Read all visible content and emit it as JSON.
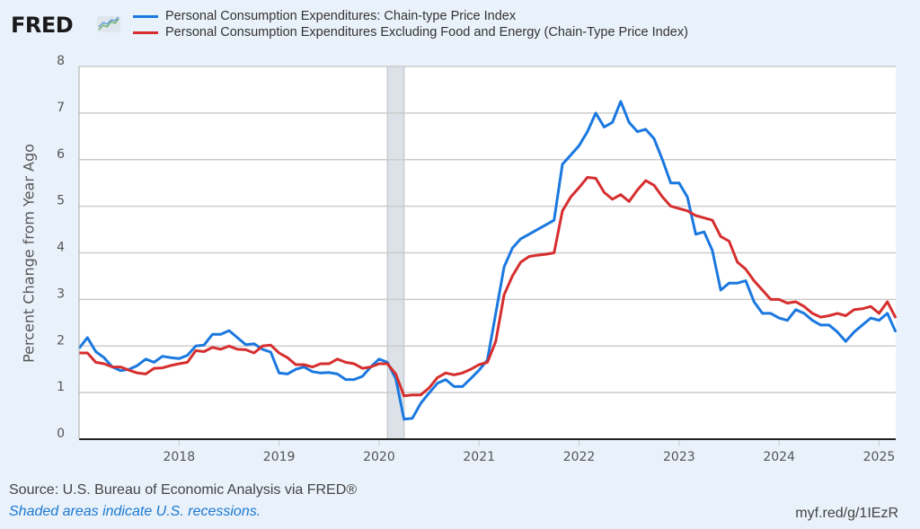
{
  "header": {
    "logo_text": "FRED",
    "logo_icon": "chart-line-icon"
  },
  "footer": {
    "source": "Source: U.S. Bureau of Economic Analysis via FRED®",
    "note": "Shaded areas indicate U.S. recessions.",
    "short_url": "myf.red/g/1IEzR"
  },
  "chart_data": {
    "type": "line",
    "title": "",
    "xlabel": "",
    "ylabel": "Percent Change from Year Ago",
    "ylim": [
      0,
      8
    ],
    "yticks": [
      "0",
      "1",
      "2",
      "3",
      "4",
      "5",
      "6",
      "7",
      "8"
    ],
    "xticks": [
      "2018",
      "2019",
      "2020",
      "2021",
      "2022",
      "2023",
      "2024",
      "2025"
    ],
    "x_start": "2017-01",
    "x_end": "2025-03",
    "frequency": "monthly",
    "grid": true,
    "legend_position": "top",
    "recessions": [
      {
        "start": "2020-02",
        "end": "2020-04"
      }
    ],
    "series": [
      {
        "name": "Personal Consumption Expenditures: Chain-type Price Index",
        "color": "#1a78e0",
        "values": [
          1.95,
          2.18,
          1.88,
          1.75,
          1.55,
          1.47,
          1.5,
          1.58,
          1.72,
          1.65,
          1.78,
          1.75,
          1.73,
          1.8,
          2.0,
          2.02,
          2.25,
          2.25,
          2.33,
          2.18,
          2.03,
          2.05,
          1.93,
          1.87,
          1.42,
          1.4,
          1.5,
          1.55,
          1.45,
          1.42,
          1.43,
          1.4,
          1.28,
          1.28,
          1.35,
          1.55,
          1.72,
          1.65,
          1.3,
          0.43,
          0.45,
          0.77,
          0.99,
          1.2,
          1.28,
          1.13,
          1.13,
          1.3,
          1.48,
          1.7,
          2.7,
          3.7,
          4.1,
          4.3,
          4.4,
          4.5,
          4.6,
          4.7,
          5.9,
          6.1,
          6.3,
          6.6,
          7.0,
          6.7,
          6.8,
          7.25,
          6.8,
          6.6,
          6.65,
          6.45,
          6.0,
          5.5,
          5.5,
          5.2,
          4.4,
          4.45,
          4.05,
          3.2,
          3.35,
          3.35,
          3.4,
          2.95,
          2.7,
          2.7,
          2.6,
          2.55,
          2.78,
          2.7,
          2.55,
          2.45,
          2.45,
          2.3,
          2.1,
          2.3,
          2.45,
          2.6,
          2.55,
          2.7,
          2.3
        ]
      },
      {
        "name": "Personal Consumption Expenditures Excluding Food and Energy (Chain-Type Price Index)",
        "color": "#d62e2e",
        "values": [
          1.85,
          1.85,
          1.65,
          1.62,
          1.55,
          1.55,
          1.48,
          1.42,
          1.4,
          1.52,
          1.53,
          1.58,
          1.62,
          1.65,
          1.9,
          1.88,
          1.97,
          1.93,
          2.0,
          1.93,
          1.92,
          1.85,
          2.0,
          2.02,
          1.85,
          1.75,
          1.6,
          1.6,
          1.55,
          1.62,
          1.62,
          1.72,
          1.65,
          1.62,
          1.52,
          1.55,
          1.62,
          1.62,
          1.4,
          0.93,
          0.95,
          0.95,
          1.1,
          1.32,
          1.42,
          1.38,
          1.42,
          1.5,
          1.6,
          1.65,
          2.1,
          3.1,
          3.5,
          3.8,
          3.92,
          3.95,
          3.97,
          4.0,
          4.9,
          5.2,
          5.4,
          5.62,
          5.6,
          5.3,
          5.15,
          5.25,
          5.1,
          5.35,
          5.55,
          5.45,
          5.2,
          5.0,
          4.95,
          4.9,
          4.8,
          4.75,
          4.7,
          4.35,
          4.25,
          3.8,
          3.65,
          3.4,
          3.2,
          3.0,
          3.0,
          2.92,
          2.95,
          2.85,
          2.7,
          2.62,
          2.65,
          2.7,
          2.65,
          2.78,
          2.8,
          2.85,
          2.7,
          2.95,
          2.6
        ]
      }
    ]
  }
}
